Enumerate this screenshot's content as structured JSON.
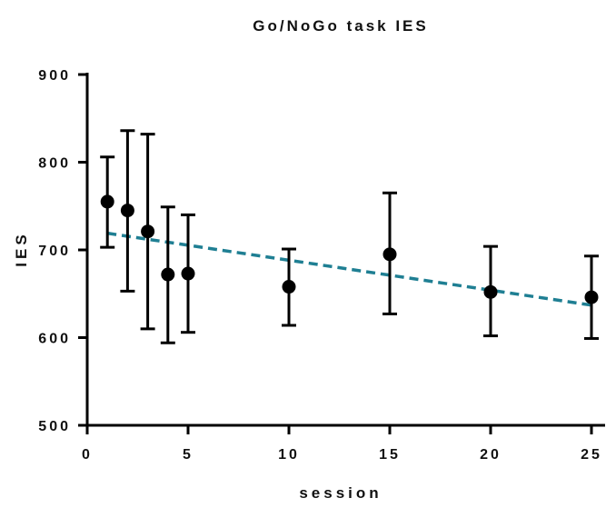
{
  "chart_data": {
    "type": "scatter",
    "title": "Go/NoGo task IES",
    "xlabel": "session",
    "ylabel": "IES",
    "xlim": [
      0,
      25
    ],
    "ylim": [
      500,
      900
    ],
    "x_ticks": [
      0,
      5,
      10,
      15,
      20,
      25
    ],
    "y_ticks": [
      500,
      600,
      700,
      800,
      900
    ],
    "x_tick_labels": [
      "0",
      "5",
      "10",
      "15",
      "20",
      "25"
    ],
    "y_tick_labels": [
      "500",
      "600",
      "700",
      "800",
      "900"
    ],
    "grid": false,
    "legend": "none",
    "series": [
      {
        "x": [
          1,
          2,
          3,
          4,
          5,
          10,
          15,
          20,
          25
        ],
        "y": [
          755,
          745,
          721,
          672,
          673,
          658,
          695,
          652,
          646
        ],
        "error_low": [
          703,
          653,
          610,
          594,
          606,
          614,
          627,
          602,
          599
        ],
        "error_high": [
          806,
          836,
          832,
          749,
          740,
          701,
          765,
          704,
          693
        ],
        "color": "#000000"
      }
    ],
    "trendline": {
      "style": "dashed",
      "color": "#1f7f93",
      "x": [
        1,
        25
      ],
      "y": [
        719,
        637
      ]
    }
  }
}
